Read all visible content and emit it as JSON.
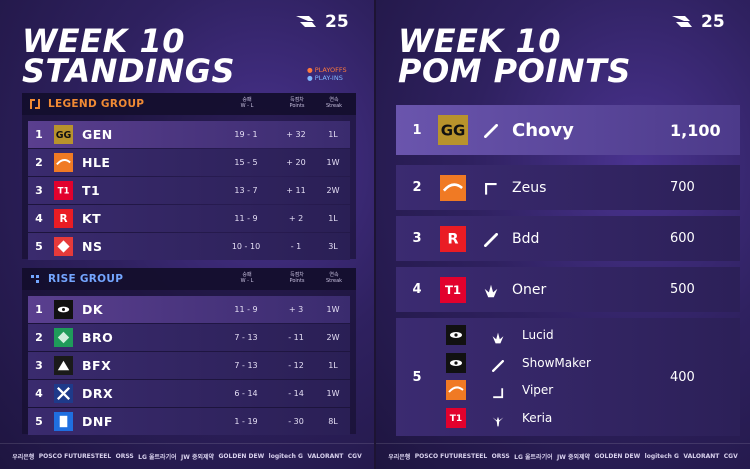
{
  "left": {
    "brand_year": "25",
    "title_line1": "WEEK 10",
    "title_line2": "STANDINGS",
    "legend_playoffs": "● PLAYOFFS",
    "legend_playins": "● PLAY-INS",
    "legend_group": {
      "name": "LEGEND GROUP",
      "col_wl_kr": "승패",
      "col_wl_en": "W - L",
      "col_pts_kr": "득점차",
      "col_pts_en": "Points",
      "col_streak_kr": "연속",
      "col_streak_en": "Streak",
      "teams": [
        {
          "rank": "1",
          "name": "GEN",
          "wl": "19 - 1",
          "points": "+ 32",
          "streak": "1L",
          "logo": "geng-icon",
          "color": "#b8932c"
        },
        {
          "rank": "2",
          "name": "HLE",
          "wl": "15 - 5",
          "points": "+ 20",
          "streak": "1W",
          "logo": "hle-icon",
          "color": "#f07a24"
        },
        {
          "rank": "3",
          "name": "T1",
          "wl": "13 - 7",
          "points": "+ 11",
          "streak": "2W",
          "logo": "t1-icon",
          "color": "#e2012d"
        },
        {
          "rank": "4",
          "name": "KT",
          "wl": "11 - 9",
          "points": "+ 2",
          "streak": "1L",
          "logo": "kt-icon",
          "color": "#ea1c24"
        },
        {
          "rank": "5",
          "name": "NS",
          "wl": "10 - 10",
          "points": "- 1",
          "streak": "3L",
          "logo": "ns-icon",
          "color": "#e63a3a"
        }
      ]
    },
    "rise_group": {
      "name": "RISE GROUP",
      "col_wl_kr": "승패",
      "col_wl_en": "W - L",
      "col_pts_kr": "득점차",
      "col_pts_en": "Points",
      "col_streak_kr": "연속",
      "col_streak_en": "Streak",
      "teams": [
        {
          "rank": "1",
          "name": "DK",
          "wl": "11 - 9",
          "points": "+ 3",
          "streak": "1W",
          "logo": "dk-icon",
          "color": "#111111"
        },
        {
          "rank": "2",
          "name": "BRO",
          "wl": "7 - 13",
          "points": "- 11",
          "streak": "2W",
          "logo": "bro-icon",
          "color": "#1f9b5a"
        },
        {
          "rank": "3",
          "name": "BFX",
          "wl": "7 - 13",
          "points": "- 12",
          "streak": "1L",
          "logo": "bfx-icon",
          "color": "#1a1a1a"
        },
        {
          "rank": "4",
          "name": "DRX",
          "wl": "6 - 14",
          "points": "- 14",
          "streak": "1W",
          "logo": "drx-icon",
          "color": "#1e3a8a"
        },
        {
          "rank": "5",
          "name": "DNF",
          "wl": "1 - 19",
          "points": "- 30",
          "streak": "8L",
          "logo": "dnf-icon",
          "color": "#1f6fe0"
        }
      ]
    },
    "sponsors": [
      "우리은행",
      "POSCO FUTURESTEEL",
      "ORSS",
      "LG 울트라기어",
      "JW 중외제약",
      "GOLDEN DEW",
      "logitech G",
      "VALORANT",
      "CGV"
    ]
  },
  "right": {
    "brand_year": "25",
    "title_line1": "WEEK 10",
    "title_line2": "POM POINTS",
    "players": [
      {
        "rank": "1",
        "name": "Chovy",
        "points": "1,100",
        "team_logo": "geng-icon",
        "team_color": "#b8932c",
        "role": "mid-icon"
      },
      {
        "rank": "2",
        "name": "Zeus",
        "points": "700",
        "team_logo": "hle-icon",
        "team_color": "#f07a24",
        "role": "top-icon"
      },
      {
        "rank": "3",
        "name": "Bdd",
        "points": "600",
        "team_logo": "kt-icon",
        "team_color": "#ea1c24",
        "role": "mid-icon"
      },
      {
        "rank": "4",
        "name": "Oner",
        "points": "500",
        "team_logo": "t1-icon",
        "team_color": "#e2012d",
        "role": "jungle-icon"
      }
    ],
    "group5": {
      "rank": "5",
      "points": "400",
      "members": [
        {
          "name": "Lucid",
          "team_logo": "dk-icon",
          "team_color": "#111111",
          "role": "jungle-icon"
        },
        {
          "name": "ShowMaker",
          "team_logo": "dk-icon",
          "team_color": "#111111",
          "role": "mid-icon"
        },
        {
          "name": "Viper",
          "team_logo": "hle-icon",
          "team_color": "#f07a24",
          "role": "bot-icon"
        },
        {
          "name": "Keria",
          "team_logo": "t1-icon",
          "team_color": "#e2012d",
          "role": "support-icon"
        }
      ]
    },
    "sponsors": [
      "우리은행",
      "POSCO FUTURESTEEL",
      "ORSS",
      "LG 울트라기어",
      "JW 중외제약",
      "GOLDEN DEW",
      "logitech G",
      "VALORANT",
      "CGV"
    ]
  }
}
